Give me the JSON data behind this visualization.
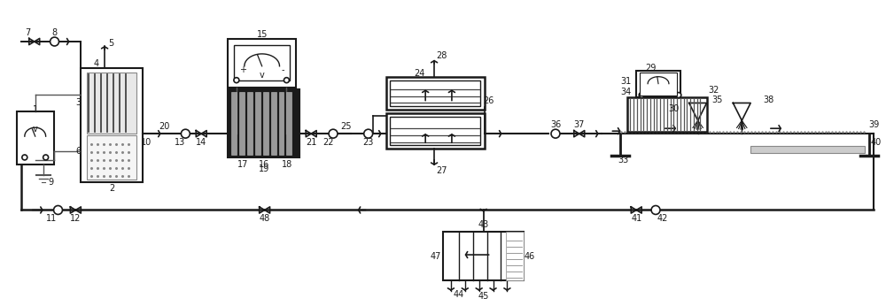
{
  "bg_color": "#ffffff",
  "line_color": "#1a1a1a",
  "fig_width": 10.0,
  "fig_height": 3.46
}
